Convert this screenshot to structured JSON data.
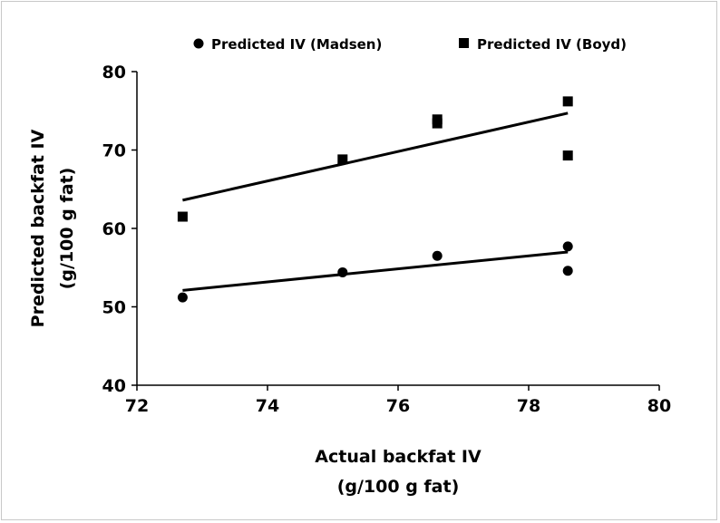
{
  "chart_data": {
    "type": "scatter",
    "title": "",
    "xlabel_lines": [
      "Actual backfat IV",
      "(g/100 g fat)"
    ],
    "ylabel_lines": [
      "Predicted backfat IV",
      "(g/100 g fat)"
    ],
    "xlim": [
      72,
      80
    ],
    "ylim": [
      40,
      80
    ],
    "xticks": [
      72,
      74,
      76,
      78,
      80
    ],
    "yticks": [
      40,
      50,
      60,
      70,
      80
    ],
    "grid": false,
    "legend_position": "top",
    "series": [
      {
        "name": "Predicted IV (Madsen)",
        "marker": "circle",
        "color": "#000000",
        "points": [
          {
            "x": 72.7,
            "y": 51.2
          },
          {
            "x": 75.15,
            "y": 54.4
          },
          {
            "x": 76.6,
            "y": 56.5
          },
          {
            "x": 78.6,
            "y": 57.7
          },
          {
            "x": 78.6,
            "y": 54.6
          }
        ],
        "trendline": [
          {
            "x": 72.7,
            "y": 52.1
          },
          {
            "x": 78.6,
            "y": 57.0
          }
        ]
      },
      {
        "name": "Predicted IV (Boyd)",
        "marker": "square",
        "color": "#000000",
        "points": [
          {
            "x": 72.7,
            "y": 61.5
          },
          {
            "x": 75.15,
            "y": 68.8
          },
          {
            "x": 76.6,
            "y": 73.9
          },
          {
            "x": 76.6,
            "y": 73.4
          },
          {
            "x": 78.6,
            "y": 76.2
          },
          {
            "x": 78.6,
            "y": 69.3
          }
        ],
        "trendline": [
          {
            "x": 72.7,
            "y": 63.6
          },
          {
            "x": 78.6,
            "y": 74.7
          }
        ]
      }
    ]
  }
}
